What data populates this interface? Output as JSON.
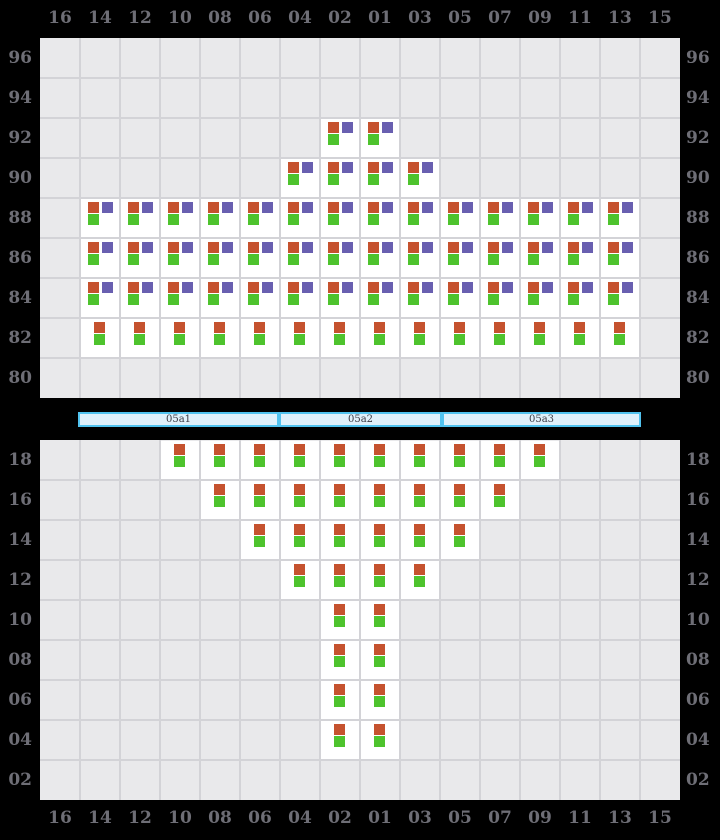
{
  "columns": [
    "16",
    "14",
    "12",
    "10",
    "08",
    "06",
    "04",
    "02",
    "01",
    "03",
    "05",
    "07",
    "09",
    "11",
    "13",
    "15"
  ],
  "top_grid": {
    "row_labels": [
      "96",
      "94",
      "92",
      "90",
      "88",
      "86",
      "84",
      "82",
      "80"
    ],
    "rows": [
      {
        "row": "92",
        "marker_set": "full",
        "cols": [
          "02",
          "01"
        ]
      },
      {
        "row": "90",
        "marker_set": "full",
        "cols": [
          "04",
          "02",
          "01",
          "03"
        ]
      },
      {
        "row": "88",
        "marker_set": "full",
        "cols": [
          "14",
          "12",
          "10",
          "08",
          "06",
          "04",
          "02",
          "01",
          "03",
          "05",
          "07",
          "09",
          "11",
          "13"
        ]
      },
      {
        "row": "86",
        "marker_set": "full",
        "cols": [
          "14",
          "12",
          "10",
          "08",
          "06",
          "04",
          "02",
          "01",
          "03",
          "05",
          "07",
          "09",
          "11",
          "13"
        ]
      },
      {
        "row": "84",
        "marker_set": "full",
        "cols": [
          "14",
          "12",
          "10",
          "08",
          "06",
          "04",
          "02",
          "01",
          "03",
          "05",
          "07",
          "09",
          "11",
          "13"
        ]
      },
      {
        "row": "82",
        "marker_set": "basic",
        "cols": [
          "14",
          "12",
          "10",
          "08",
          "06",
          "04",
          "02",
          "01",
          "03",
          "05",
          "07",
          "09",
          "11",
          "13"
        ]
      }
    ]
  },
  "section_bar": {
    "segments": [
      {
        "label": "05a1"
      },
      {
        "label": "05a2"
      },
      {
        "label": "05a3"
      }
    ]
  },
  "bottom_grid": {
    "row_labels": [
      "18",
      "16",
      "14",
      "12",
      "10",
      "08",
      "06",
      "04",
      "02"
    ],
    "rows": [
      {
        "row": "18",
        "marker_set": "basic",
        "cols": [
          "10",
          "08",
          "06",
          "04",
          "02",
          "01",
          "03",
          "05",
          "07",
          "09"
        ]
      },
      {
        "row": "16",
        "marker_set": "basic",
        "cols": [
          "08",
          "06",
          "04",
          "02",
          "01",
          "03",
          "05",
          "07"
        ]
      },
      {
        "row": "14",
        "marker_set": "basic",
        "cols": [
          "06",
          "04",
          "02",
          "01",
          "03",
          "05"
        ]
      },
      {
        "row": "12",
        "marker_set": "basic",
        "cols": [
          "04",
          "02",
          "01",
          "03"
        ]
      },
      {
        "row": "10",
        "marker_set": "basic",
        "cols": [
          "02",
          "01"
        ]
      },
      {
        "row": "08",
        "marker_set": "basic",
        "cols": [
          "02",
          "01"
        ]
      },
      {
        "row": "06",
        "marker_set": "basic",
        "cols": [
          "02",
          "01"
        ]
      },
      {
        "row": "04",
        "marker_set": "basic",
        "cols": [
          "02",
          "01"
        ]
      }
    ]
  },
  "marker_sets": {
    "full": [
      "orange",
      "purple",
      "green"
    ],
    "basic": [
      "orange",
      "green"
    ]
  },
  "colors": {
    "background": "#000000",
    "grid_bg": "#e9e9eb",
    "grid_line": "#d3d3d7",
    "cell_bg": "#ffffff",
    "marker_orange": "#c5522e",
    "marker_purple": "#695fb0",
    "marker_green": "#4ec32d",
    "bar_border": "#52c3ef",
    "bar_fill": "#e0f1fb",
    "bar_text": "#3b3b44",
    "axis_label": "#6e6e76"
  }
}
